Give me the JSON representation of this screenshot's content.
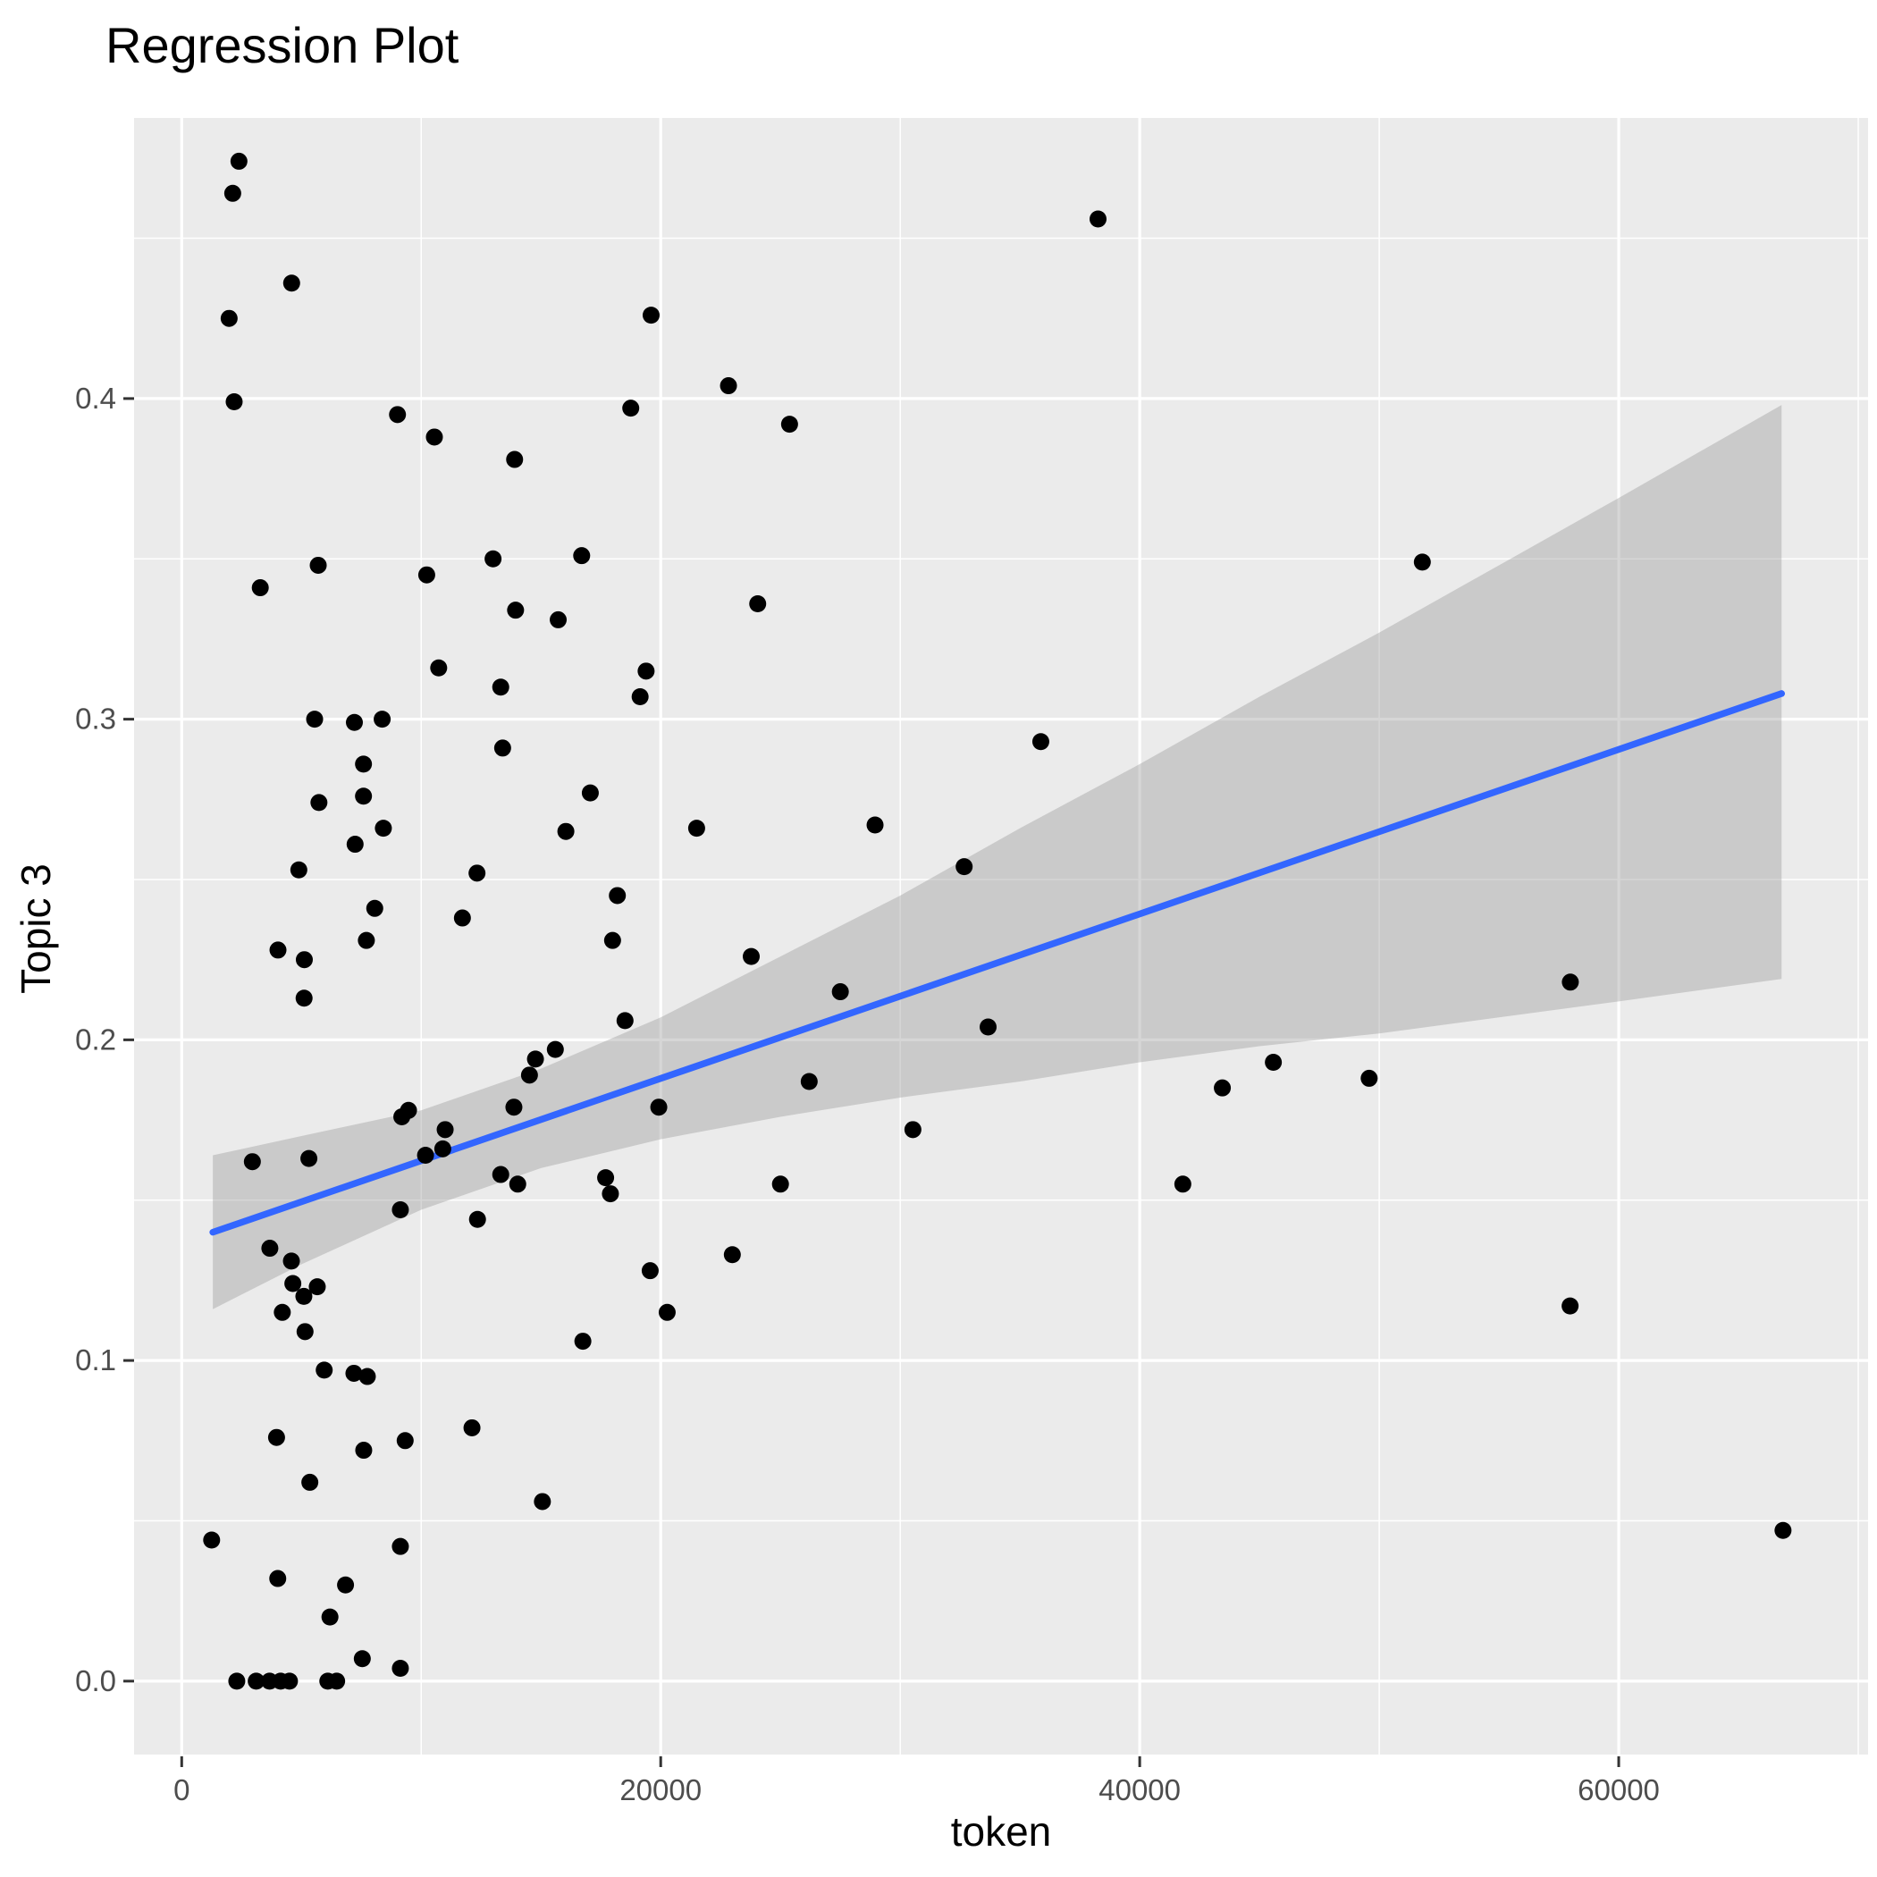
{
  "chart_data": {
    "type": "scatter",
    "title": "Regression Plot",
    "xlabel": "token",
    "ylabel": "Topic 3",
    "legend_position": "none",
    "grid": true,
    "xlim": [
      -1989,
      70411
    ],
    "ylim": [
      -0.0229,
      0.4875
    ],
    "x_major_ticks": [
      {
        "value": 0,
        "label": "0"
      },
      {
        "value": 20000,
        "label": "20000"
      },
      {
        "value": 40000,
        "label": "40000"
      },
      {
        "value": 60000,
        "label": "60000"
      }
    ],
    "x_minor_ticks": [
      10000,
      30000,
      50000,
      70000
    ],
    "y_major_ticks": [
      {
        "value": 0.0,
        "label": "0.0"
      },
      {
        "value": 0.1,
        "label": "0.1"
      },
      {
        "value": 0.2,
        "label": "0.2"
      },
      {
        "value": 0.3,
        "label": "0.3"
      },
      {
        "value": 0.4,
        "label": "0.4"
      }
    ],
    "y_minor_ticks": [
      0.05,
      0.15,
      0.25,
      0.35,
      0.45
    ],
    "points": [
      [
        2390,
        0.474
      ],
      [
        2130,
        0.464
      ],
      [
        4590,
        0.436
      ],
      [
        1980,
        0.425
      ],
      [
        2190,
        0.399
      ],
      [
        9010,
        0.395
      ],
      [
        10550,
        0.388
      ],
      [
        19600,
        0.426
      ],
      [
        18750,
        0.397
      ],
      [
        13900,
        0.381
      ],
      [
        13000,
        0.35
      ],
      [
        16700,
        0.351
      ],
      [
        5700,
        0.348
      ],
      [
        10230,
        0.345
      ],
      [
        3280,
        0.341
      ],
      [
        13940,
        0.334
      ],
      [
        15720,
        0.331
      ],
      [
        38260,
        0.456
      ],
      [
        22830,
        0.404
      ],
      [
        25380,
        0.392
      ],
      [
        24050,
        0.336
      ],
      [
        51800,
        0.349
      ],
      [
        10730,
        0.316
      ],
      [
        19390,
        0.315
      ],
      [
        19140,
        0.307
      ],
      [
        13320,
        0.31
      ],
      [
        5550,
        0.3
      ],
      [
        7210,
        0.299
      ],
      [
        8370,
        0.3
      ],
      [
        13400,
        0.291
      ],
      [
        7590,
        0.286
      ],
      [
        17060,
        0.277
      ],
      [
        5730,
        0.274
      ],
      [
        7590,
        0.276
      ],
      [
        8420,
        0.266
      ],
      [
        16040,
        0.265
      ],
      [
        7240,
        0.261
      ],
      [
        4890,
        0.253
      ],
      [
        12330,
        0.252
      ],
      [
        18190,
        0.245
      ],
      [
        8060,
        0.241
      ],
      [
        11720,
        0.238
      ],
      [
        7710,
        0.231
      ],
      [
        4020,
        0.228
      ],
      [
        5120,
        0.225
      ],
      [
        17990,
        0.231
      ],
      [
        15600,
        0.197
      ],
      [
        14770,
        0.194
      ],
      [
        14520,
        0.189
      ],
      [
        5110,
        0.213
      ],
      [
        18510,
        0.206
      ],
      [
        9190,
        0.176
      ],
      [
        9470,
        0.178
      ],
      [
        11000,
        0.172
      ],
      [
        10900,
        0.166
      ],
      [
        10180,
        0.164
      ],
      [
        13870,
        0.179
      ],
      [
        17700,
        0.157
      ],
      [
        19920,
        0.179
      ],
      [
        2950,
        0.162
      ],
      [
        5310,
        0.163
      ],
      [
        13320,
        0.158
      ],
      [
        17900,
        0.152
      ],
      [
        21500,
        0.266
      ],
      [
        35870,
        0.293
      ],
      [
        28950,
        0.267
      ],
      [
        32670,
        0.254
      ],
      [
        23780,
        0.226
      ],
      [
        27500,
        0.215
      ],
      [
        33670,
        0.204
      ],
      [
        26200,
        0.187
      ],
      [
        30530,
        0.172
      ],
      [
        43450,
        0.185
      ],
      [
        25000,
        0.155
      ],
      [
        41800,
        0.155
      ],
      [
        57980,
        0.218
      ],
      [
        45580,
        0.193
      ],
      [
        49580,
        0.188
      ],
      [
        3680,
        0.135
      ],
      [
        4580,
        0.131
      ],
      [
        4640,
        0.124
      ],
      [
        5660,
        0.123
      ],
      [
        5100,
        0.12
      ],
      [
        4200,
        0.115
      ],
      [
        5150,
        0.109
      ],
      [
        9130,
        0.147
      ],
      [
        14030,
        0.155
      ],
      [
        12350,
        0.144
      ],
      [
        15060,
        0.056
      ],
      [
        16750,
        0.106
      ],
      [
        19560,
        0.128
      ],
      [
        20270,
        0.115
      ],
      [
        5950,
        0.097
      ],
      [
        7190,
        0.096
      ],
      [
        7750,
        0.095
      ],
      [
        3960,
        0.076
      ],
      [
        7600,
        0.072
      ],
      [
        9330,
        0.075
      ],
      [
        12120,
        0.079
      ],
      [
        5350,
        0.062
      ],
      [
        1250,
        0.044
      ],
      [
        9130,
        0.042
      ],
      [
        4010,
        0.032
      ],
      [
        6840,
        0.03
      ],
      [
        6190,
        0.02
      ],
      [
        7540,
        0.007
      ],
      [
        9130,
        0.004
      ],
      [
        2300,
        0.0
      ],
      [
        3110,
        0.0
      ],
      [
        3670,
        0.0
      ],
      [
        4130,
        0.0
      ],
      [
        4500,
        0.0
      ],
      [
        6100,
        0.0
      ],
      [
        6470,
        0.0
      ],
      [
        22990,
        0.133
      ],
      [
        57970,
        0.117
      ],
      [
        66860,
        0.047
      ]
    ],
    "regression_line": {
      "x": [
        1300,
        66800
      ],
      "y": [
        0.14,
        0.308
      ]
    },
    "ci_band": {
      "x": [
        1300,
        5000,
        10000,
        15000,
        20000,
        25000,
        30000,
        35000,
        40000,
        45000,
        50000,
        55000,
        60000,
        66800
      ],
      "upper": [
        0.164,
        0.17,
        0.178,
        0.191,
        0.207,
        0.226,
        0.245,
        0.266,
        0.286,
        0.307,
        0.327,
        0.348,
        0.369,
        0.398
      ],
      "lower": [
        0.116,
        0.13,
        0.147,
        0.16,
        0.169,
        0.176,
        0.182,
        0.187,
        0.193,
        0.198,
        0.202,
        0.207,
        0.212,
        0.219
      ]
    },
    "colors": {
      "panel_background": "#EBEBEB",
      "grid": "#FFFFFF",
      "point": "#000000",
      "regression_line": "#3366FF",
      "ci_band_fill": "rgba(153,153,153,0.40)",
      "tick_text": "#4D4D4D",
      "tick_mark": "#333333",
      "title_text": "#000000"
    }
  }
}
